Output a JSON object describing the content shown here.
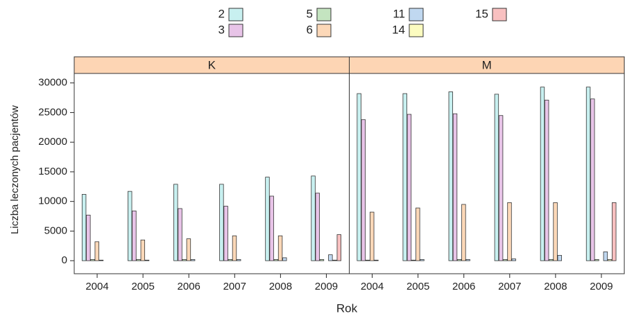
{
  "chart_data": {
    "type": "bar",
    "y_label": "Liczba leczonych pacjentów",
    "x_label": "Rok",
    "panels": [
      "K",
      "M"
    ],
    "strip_color": "#fdd5b4",
    "categories": [
      "2004",
      "2005",
      "2006",
      "2007",
      "2008",
      "2009"
    ],
    "ylim": [
      -2200,
      31600
    ],
    "yticks": [
      0,
      5000,
      10000,
      15000,
      20000,
      25000,
      30000
    ],
    "series": [
      {
        "name": "2",
        "color": "#c8f0f0",
        "values": [
          [
            11200,
            11700,
            12900,
            12900,
            14100,
            14300
          ],
          [
            28200,
            28200,
            28500,
            28100,
            29300,
            29300
          ]
        ]
      },
      {
        "name": "3",
        "color": "#e8c4e8",
        "values": [
          [
            7700,
            8400,
            8800,
            9200,
            10900,
            11400
          ],
          [
            23800,
            24700,
            24800,
            24500,
            27100,
            27300
          ]
        ]
      },
      {
        "name": "5",
        "color": "#c4e4c0",
        "values": [
          [
            200,
            200,
            200,
            200,
            200,
            200
          ],
          [
            100,
            100,
            200,
            200,
            200,
            200
          ]
        ]
      },
      {
        "name": "6",
        "color": "#fcd8b8",
        "values": [
          [
            3200,
            3500,
            3700,
            4200,
            4200,
            null
          ],
          [
            8200,
            8900,
            9500,
            9800,
            9800,
            null
          ]
        ]
      },
      {
        "name": "11",
        "color": "#c0d8f0",
        "values": [
          [
            100,
            100,
            200,
            200,
            500,
            1000
          ],
          [
            100,
            200,
            200,
            300,
            900,
            1500
          ]
        ]
      },
      {
        "name": "14",
        "color": "#fcfcc0",
        "values": [
          [
            null,
            null,
            null,
            null,
            null,
            100
          ],
          [
            null,
            null,
            null,
            null,
            null,
            200
          ]
        ]
      },
      {
        "name": "15",
        "color": "#f8c0c0",
        "values": [
          [
            null,
            null,
            null,
            null,
            null,
            4400
          ],
          [
            null,
            null,
            null,
            null,
            null,
            9800
          ]
        ]
      }
    ]
  }
}
